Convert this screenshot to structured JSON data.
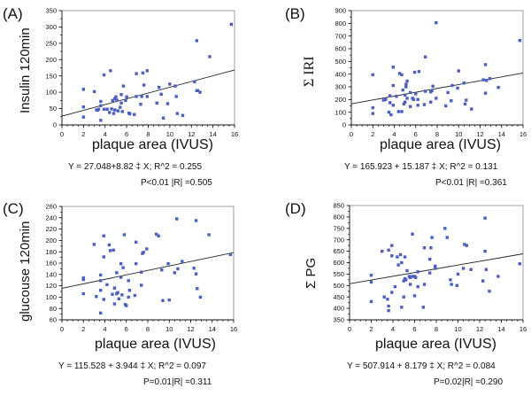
{
  "chart_data": [
    {
      "id": "A",
      "type": "scatter",
      "panel_label": "(A)",
      "xlabel": "plaque area (IVUS)",
      "ylabel": "Insulin 120min",
      "xlim": [
        0,
        16
      ],
      "ylim": [
        0,
        350
      ],
      "xticks": [
        0,
        2,
        4,
        6,
        8,
        10,
        12,
        14,
        16
      ],
      "yticks": [
        0,
        50,
        100,
        150,
        200,
        250,
        300,
        350
      ],
      "regression": {
        "intercept": 27.048,
        "slope": 8.82
      },
      "equation": "Y = 27.048+8.82 ‡ X; R^2 = 0.255",
      "stats": "P<0.01 |R| =0.505",
      "point_color": "#4a5fc0",
      "x": [
        15.7,
        12.5,
        13.7,
        3.9,
        4.5,
        6.9,
        7.5,
        7.9,
        2.0,
        3.0,
        5.7,
        7.6,
        10.0,
        9.0,
        10.5,
        12.3,
        12.5,
        12.8,
        10.6,
        9.2,
        6.9,
        7.4,
        7.9,
        5.0,
        5.5,
        6.0,
        4.7,
        5.1,
        5.5,
        5.9,
        3.6,
        3.6,
        2.0,
        5.4,
        4.6,
        4.9,
        5.2,
        3.4,
        3.2,
        4.2,
        3.9,
        4.4,
        4.8,
        5.6,
        6.2,
        7.3,
        6.7,
        8.8,
        9.8,
        10.7,
        11.2,
        9.4,
        2.0,
        3.6,
        3.3,
        12.6,
        4.9,
        6.3
      ],
      "y": [
        308,
        258,
        209,
        153,
        166,
        157,
        159,
        166,
        109,
        102,
        119,
        122,
        125,
        115,
        119,
        132,
        105,
        100,
        87,
        94,
        87,
        87,
        87,
        86,
        93,
        86,
        75,
        76,
        67,
        75,
        72,
        59,
        55,
        54,
        49,
        46,
        43,
        48,
        46,
        48,
        48,
        38,
        35,
        41,
        36,
        63,
        32,
        67,
        65,
        35,
        29,
        21,
        24,
        14,
        45,
        105,
        80,
        34
      ]
    },
    {
      "id": "B",
      "type": "scatter",
      "panel_label": "(B)",
      "xlabel": "plaque area (IVUS)",
      "ylabel": "Σ IRI",
      "xlim": [
        0,
        16
      ],
      "ylim": [
        0,
        900
      ],
      "xticks": [
        0,
        2,
        4,
        6,
        8,
        10,
        12,
        14,
        16
      ],
      "yticks": [
        0,
        100,
        200,
        300,
        400,
        500,
        600,
        700,
        800,
        900
      ],
      "regression": {
        "intercept": 165.923,
        "slope": 15.187
      },
      "equation": "Y = 165.923 + 15.187 ‡ X; R^2 = 0.131",
      "stats": "P<0.01 |R| =0.361",
      "point_color": "#4a5fc0",
      "x": [
        7.9,
        15.7,
        6.9,
        12.5,
        2.0,
        3.9,
        4.5,
        4.7,
        6.3,
        5.9,
        10.0,
        5.2,
        3.9,
        5.1,
        5.1,
        7.6,
        12.9,
        12.3,
        12.6,
        10.5,
        9.4,
        13.7,
        9.9,
        4.8,
        5.5,
        6.9,
        7.4,
        7.5,
        6.0,
        4.2,
        3.6,
        3.0,
        3.2,
        5.0,
        5.7,
        5.8,
        6.2,
        9.0,
        12.5,
        7.9,
        3.6,
        5.2,
        4.9,
        3.9,
        5.5,
        6.2,
        5.0,
        10.7,
        9.3,
        8.8,
        6.8,
        10.6,
        7.4,
        2.0,
        2.0,
        3.5,
        3.7,
        4.4,
        4.7,
        11.2
      ],
      "y": [
        805,
        665,
        535,
        475,
        395,
        455,
        405,
        395,
        420,
        415,
        425,
        345,
        310,
        320,
        300,
        305,
        365,
        355,
        350,
        330,
        310,
        295,
        290,
        275,
        255,
        265,
        260,
        270,
        245,
        225,
        230,
        195,
        200,
        235,
        210,
        200,
        200,
        255,
        250,
        210,
        175,
        210,
        165,
        155,
        145,
        155,
        180,
        195,
        190,
        150,
        160,
        165,
        180,
        135,
        90,
        100,
        80,
        105,
        105,
        125
      ]
    },
    {
      "id": "C",
      "type": "scatter",
      "panel_label": "(C)",
      "xlabel": "plaque area (IVUS)",
      "ylabel": "glucouse 120min",
      "xlim": [
        0,
        16
      ],
      "ylim": [
        60,
        260
      ],
      "xticks": [
        0,
        2,
        4,
        6,
        8,
        10,
        12,
        14,
        16
      ],
      "yticks": [
        60,
        80,
        100,
        120,
        140,
        160,
        180,
        200,
        220,
        240,
        260
      ],
      "regression": {
        "intercept": 115.528,
        "slope": 3.944
      },
      "equation": "Y = 115.528 + 3.944 ‡ X; R^2 = 0.097",
      "stats": "P=0.01|R| =0.311",
      "point_color": "#4a5fc0",
      "x": [
        10.7,
        12.5,
        13.7,
        3.9,
        5.8,
        8.8,
        9.0,
        3.0,
        4.4,
        4.8,
        6.9,
        4.5,
        7.6,
        7.5,
        7.9,
        3.9,
        5.5,
        6.9,
        5.7,
        11.2,
        9.9,
        12.3,
        2.0,
        3.6,
        5.1,
        5.5,
        12.5,
        10.8,
        10.5,
        7.4,
        9.3,
        3.6,
        6.2,
        5.2,
        4.2,
        4.9,
        2.0,
        2.0,
        3.9,
        3.6,
        4.7,
        5.1,
        5.3,
        6.3,
        5.6,
        6.8,
        7.4,
        9.4,
        10.0,
        12.6,
        12.9,
        4.9,
        5.9,
        6.0,
        3.6,
        3.2,
        15.7,
        6.2
      ],
      "y": [
        238,
        235,
        210,
        208,
        210,
        211,
        208,
        193,
        192,
        183,
        197,
        182,
        179,
        177,
        185,
        171,
        159,
        159,
        152,
        163,
        159,
        151,
        131,
        139,
        143,
        135,
        141,
        150,
        143,
        144,
        148,
        129,
        129,
        108,
        122,
        116,
        134,
        106,
        96,
        112,
        105,
        106,
        97,
        112,
        104,
        103,
        121,
        94,
        95,
        115,
        100,
        88,
        87,
        85,
        72,
        101,
        175,
        100
      ]
    },
    {
      "id": "D",
      "type": "scatter",
      "panel_label": "(D)",
      "xlabel": "plaque area (IVUS)",
      "ylabel": "Σ PG",
      "xlim": [
        0,
        16
      ],
      "ylim": [
        350,
        850
      ],
      "xticks": [
        0,
        2,
        4,
        6,
        8,
        10,
        12,
        14,
        16
      ],
      "yticks": [
        350,
        400,
        450,
        500,
        550,
        600,
        650,
        700,
        750,
        800,
        850
      ],
      "regression": {
        "intercept": 507.914,
        "slope": 8.179
      },
      "equation": "Y = 507.914 + 8.179 ‡ X; R^2 = 0.084",
      "stats": "P=0.02|R| =0.290",
      "point_color": "#4a5fc0",
      "x": [
        12.5,
        8.8,
        5.8,
        9.0,
        7.6,
        10.6,
        10.8,
        3.9,
        6.9,
        7.5,
        12.5,
        3.0,
        3.6,
        4.4,
        4.7,
        5.1,
        3.9,
        7.4,
        4.8,
        4.5,
        15.7,
        7.9,
        7.9,
        10.5,
        12.6,
        5.3,
        11.2,
        6.3,
        5.5,
        5.6,
        5.8,
        6.0,
        6.1,
        7.4,
        10.0,
        2.0,
        2.0,
        9.3,
        9.4,
        5.0,
        5.1,
        5.2,
        13.7,
        6.9,
        5.6,
        9.9,
        12.3,
        6.3,
        4.2,
        3.9,
        12.9,
        3.2,
        3.5,
        5.0,
        6.0,
        2.0,
        3.6,
        3.6,
        4.8,
        6.8
      ],
      "y": [
        795,
        750,
        725,
        710,
        710,
        680,
        675,
        675,
        665,
        665,
        650,
        650,
        655,
        625,
        635,
        625,
        630,
        615,
        600,
        590,
        595,
        585,
        575,
        575,
        570,
        565,
        570,
        560,
        540,
        535,
        540,
        540,
        535,
        555,
        550,
        545,
        515,
        525,
        505,
        520,
        530,
        525,
        540,
        505,
        505,
        500,
        520,
        495,
        495,
        470,
        475,
        450,
        440,
        450,
        455,
        430,
        410,
        390,
        405,
        405
      ]
    }
  ]
}
